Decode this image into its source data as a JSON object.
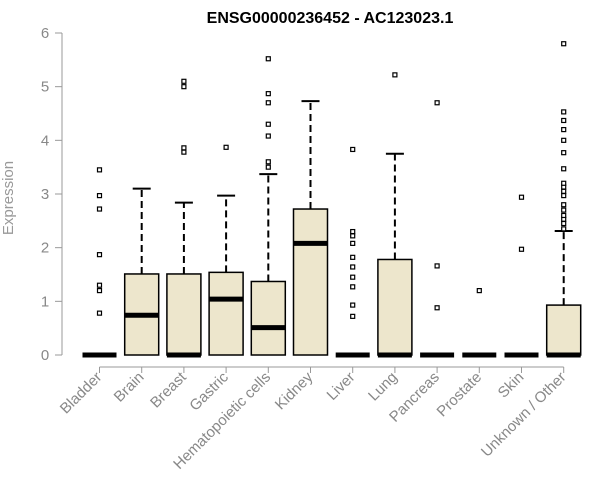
{
  "chart_data": {
    "type": "boxplot",
    "title": "ENSG00000236452 - AC123023.1",
    "ylabel": "Expression",
    "xlabel": "",
    "ylim": [
      0,
      6
    ],
    "yticks": [
      "0",
      "1",
      "2",
      "3",
      "4",
      "5",
      "6"
    ],
    "box_fill": "#ede6cc",
    "box_stroke": "#000000",
    "grid": false,
    "categories": [
      "Bladder",
      "Brain",
      "Breast",
      "Gastric",
      "Hematopoietic cells",
      "Kidney",
      "Liver",
      "Lung",
      "Pancreas",
      "Prostate",
      "Skin",
      "Unknown / Other"
    ],
    "boxes": [
      {
        "q1": 0,
        "median": 0,
        "q3": 0,
        "whisker_low": 0,
        "whisker_high": 0,
        "outliers": [
          0.78,
          1.2,
          1.3,
          1.87,
          2.72,
          2.97,
          3.45
        ]
      },
      {
        "q1": 0,
        "median": 0.74,
        "q3": 1.51,
        "whisker_low": 0,
        "whisker_high": 3.1,
        "outliers": []
      },
      {
        "q1": 0,
        "median": 0,
        "q3": 1.51,
        "whisker_low": 0,
        "whisker_high": 2.84,
        "outliers": [
          3.78,
          3.86,
          5.0,
          5.1
        ]
      },
      {
        "q1": 0,
        "median": 1.04,
        "q3": 1.54,
        "whisker_low": 0,
        "whisker_high": 2.97,
        "outliers": [
          3.87
        ]
      },
      {
        "q1": 0,
        "median": 0.51,
        "q3": 1.37,
        "whisker_low": 0,
        "whisker_high": 3.37,
        "outliers": [
          3.5,
          3.6,
          4.08,
          4.3,
          4.7,
          4.87,
          5.52
        ]
      },
      {
        "q1": 0,
        "median": 2.08,
        "q3": 2.72,
        "whisker_low": 0,
        "whisker_high": 4.73,
        "outliers": []
      },
      {
        "q1": 0,
        "median": 0,
        "q3": 0,
        "whisker_low": 0,
        "whisker_high": 0,
        "outliers": [
          0.72,
          0.93,
          1.27,
          1.45,
          1.64,
          1.82,
          2.08,
          2.22,
          2.3,
          3.83
        ]
      },
      {
        "q1": 0,
        "median": 0,
        "q3": 1.78,
        "whisker_low": 0,
        "whisker_high": 3.75,
        "outliers": [
          5.22
        ]
      },
      {
        "q1": 0,
        "median": 0,
        "q3": 0,
        "whisker_low": 0,
        "whisker_high": 0,
        "outliers": [
          0.88,
          1.66,
          4.7
        ]
      },
      {
        "q1": 0,
        "median": 0,
        "q3": 0,
        "whisker_low": 0,
        "whisker_high": 0,
        "outliers": [
          1.2
        ]
      },
      {
        "q1": 0,
        "median": 0,
        "q3": 0,
        "whisker_low": 0,
        "whisker_high": 0,
        "outliers": [
          1.97,
          2.94
        ]
      },
      {
        "q1": 0,
        "median": 0,
        "q3": 0.93,
        "whisker_low": 0,
        "whisker_high": 2.31,
        "outliers": [
          2.35,
          2.45,
          2.53,
          2.6,
          2.7,
          2.8,
          2.97,
          3.05,
          3.13,
          3.2,
          3.47,
          3.77,
          4.0,
          4.2,
          4.37,
          4.53,
          5.8
        ]
      }
    ]
  }
}
